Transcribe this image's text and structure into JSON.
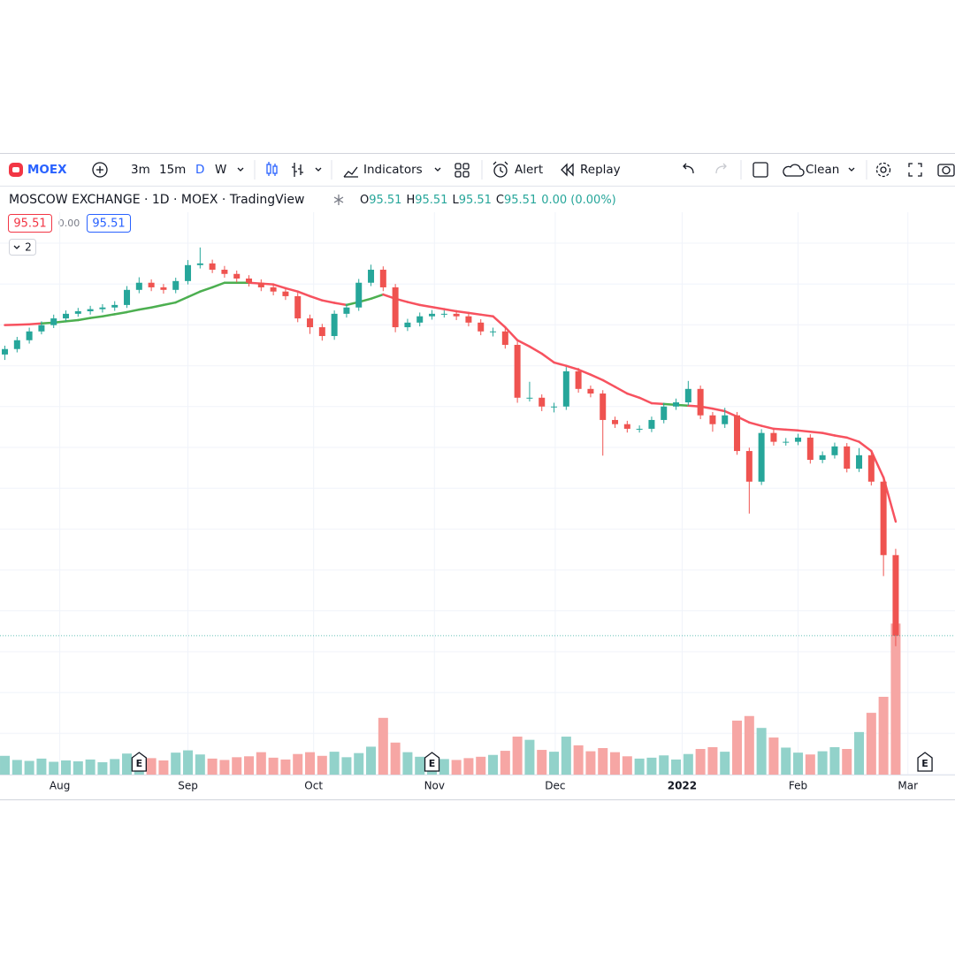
{
  "toolbar": {
    "symbol": "MOEX",
    "intervals": [
      "3m",
      "15m",
      "D",
      "W"
    ],
    "indicators": "Indicators",
    "alert": "Alert",
    "replay": "Replay",
    "layout": "Clean"
  },
  "legend": {
    "title": "MOSCOW EXCHANGE · 1D · MOEX · TradingView",
    "ohlc": [
      {
        "key": "O",
        "value": "95.51"
      },
      {
        "key": "H",
        "value": "95.51"
      },
      {
        "key": "L",
        "value": "95.51"
      },
      {
        "key": "C",
        "value": "95.51"
      }
    ],
    "change": "0.00 (0.00%)",
    "bid": "95.51",
    "spread": "0.00",
    "ask": "95.51",
    "indicators_count": "2"
  },
  "chart_data": {
    "type": "candlestick",
    "xlim": [
      -0.4,
      77.86
    ],
    "xticks": [
      {
        "value": 4.5,
        "label": "Aug"
      },
      {
        "value": 15.0,
        "label": "Sep"
      },
      {
        "value": 25.3,
        "label": "Oct"
      },
      {
        "value": 35.2,
        "label": "Nov"
      },
      {
        "value": 45.1,
        "label": "Dec"
      },
      {
        "value": 55.5,
        "label": "2022"
      },
      {
        "value": 65.0,
        "label": "Feb"
      },
      {
        "value": 74.0,
        "label": "Mar"
      }
    ],
    "ylim": [
      62.4,
      196.4
    ],
    "volume_ylim": [
      0,
      34
    ],
    "grid": true,
    "up_color": "#26a69a",
    "down_color": "#ef5350",
    "volume_up_color": "#92d2ca",
    "volume_down_color": "#f6a6a4",
    "ma_up_color": "#4caf50",
    "ma_down_color": "#f7525f",
    "open": [
      162.5,
      163.8,
      165.9,
      168.0,
      169.5,
      171.1,
      172.2,
      172.8,
      173.3,
      173.7,
      174.3,
      177.9,
      179.6,
      178.5,
      177.9,
      180.0,
      183.8,
      184.2,
      182.7,
      181.7,
      180.6,
      179.6,
      178.5,
      177.5,
      176.4,
      171.1,
      169.0,
      166.9,
      172.2,
      173.7,
      179.6,
      182.7,
      178.5,
      169.0,
      170.1,
      171.6,
      172.2,
      172.2,
      171.6,
      170.1,
      168.0,
      168.0,
      164.8,
      152.2,
      152.2,
      150.1,
      150.1,
      158.5,
      154.3,
      153.2,
      146.9,
      145.9,
      144.8,
      144.8,
      146.9,
      150.1,
      151.1,
      154.3,
      148.0,
      145.9,
      148.0,
      139.5,
      132.2,
      143.8,
      141.7,
      141.7,
      142.7,
      137.4,
      138.5,
      140.6,
      135.3,
      138.5,
      132.2,
      114.7
    ],
    "high": [
      164.6,
      166.7,
      168.9,
      170.4,
      172.0,
      173.0,
      173.6,
      174.1,
      174.5,
      175.2,
      178.8,
      180.9,
      180.4,
      179.3,
      180.8,
      185.0,
      188.0,
      185.1,
      183.6,
      182.5,
      181.4,
      180.4,
      179.3,
      178.3,
      177.2,
      172.0,
      169.8,
      173.0,
      174.6,
      180.5,
      183.9,
      183.5,
      179.3,
      171.0,
      172.5,
      173.1,
      173.0,
      173.0,
      172.4,
      170.9,
      168.9,
      168.8,
      165.6,
      156.0,
      153.0,
      151.0,
      159.5,
      159.3,
      155.1,
      154.0,
      147.7,
      146.7,
      145.6,
      147.7,
      151.0,
      152.0,
      156.2,
      155.1,
      148.8,
      149.8,
      148.8,
      140.3,
      144.7,
      144.6,
      142.6,
      143.6,
      143.5,
      139.4,
      141.5,
      141.4,
      140.2,
      139.3,
      133.0,
      116.2
    ],
    "low": [
      161.2,
      163.0,
      165.1,
      167.3,
      168.8,
      170.4,
      171.5,
      172.0,
      172.5,
      172.9,
      173.6,
      177.1,
      177.6,
      177.0,
      177.1,
      179.2,
      183.0,
      181.9,
      180.8,
      179.7,
      178.7,
      177.6,
      176.6,
      175.5,
      170.2,
      167.4,
      165.8,
      166.0,
      171.3,
      172.9,
      178.8,
      177.6,
      167.8,
      168.1,
      169.2,
      170.8,
      171.3,
      170.7,
      169.2,
      167.1,
      166.8,
      163.9,
      151.0,
      151.3,
      149.0,
      148.7,
      149.3,
      153.4,
      152.3,
      138.4,
      145.0,
      143.9,
      143.9,
      144.0,
      146.1,
      149.3,
      150.3,
      147.1,
      144.1,
      145.0,
      138.6,
      124.6,
      131.4,
      140.8,
      140.8,
      140.9,
      136.5,
      136.6,
      137.7,
      134.4,
      134.5,
      131.3,
      109.7,
      93.0
    ],
    "close": [
      163.8,
      165.9,
      168.0,
      169.5,
      171.1,
      172.2,
      172.8,
      173.3,
      173.7,
      174.3,
      177.9,
      179.6,
      178.5,
      177.9,
      180.0,
      183.8,
      184.2,
      182.7,
      181.7,
      180.6,
      179.6,
      178.5,
      177.5,
      176.4,
      171.1,
      169.0,
      166.9,
      172.2,
      173.7,
      179.6,
      182.7,
      178.5,
      169.0,
      170.1,
      171.6,
      172.2,
      172.2,
      171.6,
      170.1,
      168.0,
      168.0,
      164.8,
      152.2,
      152.2,
      150.1,
      150.1,
      158.5,
      154.3,
      153.2,
      146.9,
      145.9,
      144.8,
      144.8,
      146.9,
      150.1,
      151.1,
      154.3,
      148.0,
      145.9,
      148.0,
      139.5,
      132.2,
      143.8,
      141.7,
      141.7,
      142.7,
      137.4,
      138.5,
      140.6,
      135.3,
      138.5,
      132.2,
      114.7,
      95.51
    ],
    "volume": [
      4.1,
      3.2,
      3.0,
      3.5,
      2.8,
      3.1,
      2.9,
      3.3,
      2.7,
      3.4,
      4.6,
      3.9,
      3.6,
      3.1,
      4.8,
      5.3,
      4.4,
      3.5,
      3.2,
      3.8,
      4.0,
      4.9,
      3.7,
      3.3,
      4.5,
      4.9,
      4.1,
      5.0,
      3.8,
      4.7,
      6.1,
      12.4,
      7.0,
      4.9,
      3.9,
      3.6,
      3.4,
      3.2,
      3.6,
      3.9,
      4.3,
      5.2,
      8.3,
      7.6,
      5.4,
      5.0,
      8.3,
      6.4,
      5.1,
      5.8,
      4.9,
      4.0,
      3.5,
      3.7,
      4.2,
      3.3,
      4.5,
      5.6,
      6.0,
      5.0,
      11.8,
      12.8,
      10.2,
      8.1,
      5.9,
      4.8,
      4.4,
      5.1,
      6.0,
      5.6,
      9.3,
      13.5,
      17.0,
      33.0
    ],
    "ma": [
      169.5,
      169.6,
      169.7,
      169.9,
      170.1,
      170.4,
      170.7,
      171.2,
      171.6,
      172.1,
      172.6,
      173.2,
      173.7,
      174.3,
      174.9,
      176.2,
      177.5,
      178.5,
      179.6,
      179.6,
      179.6,
      179.4,
      179.2,
      178.3,
      177.5,
      176.4,
      175.4,
      174.8,
      174.3,
      175.0,
      175.8,
      176.8,
      175.8,
      175.0,
      174.3,
      173.8,
      173.3,
      172.8,
      172.4,
      172.0,
      171.6,
      169.0,
      165.9,
      164.4,
      162.7,
      160.6,
      159.8,
      158.9,
      157.7,
      156.4,
      154.8,
      153.2,
      152.2,
      150.9,
      150.7,
      150.5,
      150.3,
      150.1,
      149.6,
      149.0,
      147.7,
      146.3,
      145.5,
      144.8,
      144.6,
      144.4,
      144.1,
      143.8,
      143.2,
      142.7,
      141.7,
      139.5,
      133.2,
      122.7
    ],
    "earnings": [
      {
        "x": 11,
        "label": "E"
      },
      {
        "x": 35,
        "label": "E"
      },
      {
        "x": 75.4,
        "label": "E"
      }
    ]
  }
}
